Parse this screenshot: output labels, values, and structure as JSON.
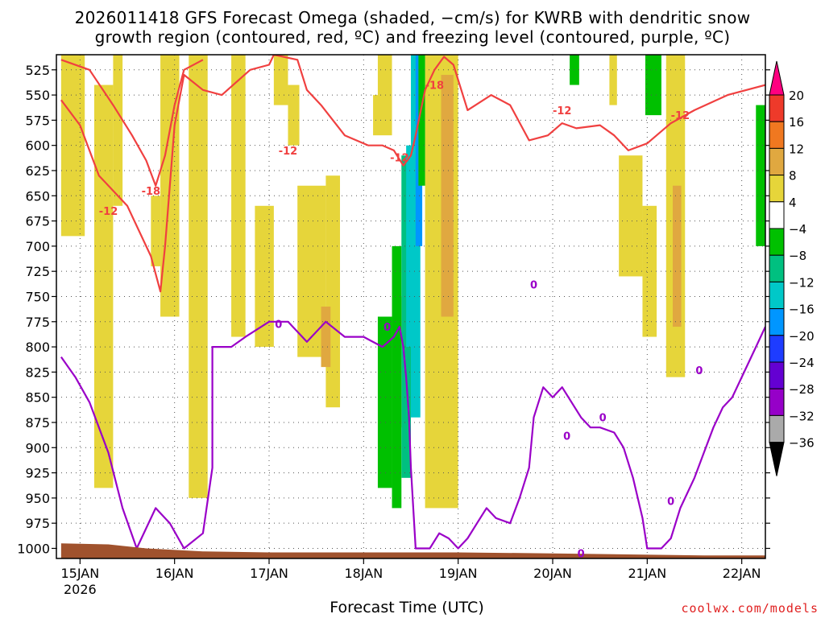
{
  "title_line1": "2026011418 GFS Forecast Omega (shaded, −cm/s) for KWRB with dendritic snow",
  "title_line2": "growth region (contoured, red, ºC) and freezing level (contoured, purple, ºC)",
  "credit": "coolwx.com/models",
  "chart_data": {
    "type": "heatmap",
    "title": "2026011418 GFS Forecast Omega (shaded, −cm/s) for KWRB with dendritic snow growth region (contoured, red, ºC) and freezing level (contoured, purple, ºC)",
    "xlabel": "Forecast Time (UTC)",
    "ylabel": "",
    "y_ticks": [
      525,
      550,
      575,
      600,
      625,
      650,
      675,
      700,
      725,
      750,
      775,
      800,
      825,
      850,
      875,
      900,
      925,
      950,
      975,
      1000
    ],
    "ylim": [
      1010,
      510
    ],
    "x_ticks": [
      {
        "label": "15JAN",
        "day": 15
      },
      {
        "label": "16JAN",
        "day": 16
      },
      {
        "label": "17JAN",
        "day": 17
      },
      {
        "label": "18JAN",
        "day": 18
      },
      {
        "label": "19JAN",
        "day": 19
      },
      {
        "label": "20JAN",
        "day": 20
      },
      {
        "label": "21JAN",
        "day": 21
      },
      {
        "label": "22JAN",
        "day": 22
      }
    ],
    "x_year_label": "2026",
    "xlim": [
      14.75,
      22.25
    ],
    "colorbar": {
      "values": [
        20,
        16,
        12,
        8,
        4,
        -4,
        -8,
        -12,
        -16,
        -20,
        -24,
        -28,
        -32,
        -36
      ],
      "colors": [
        "#ff0080",
        "#ee3a2a",
        "#f07820",
        "#e0a840",
        "#e6d53a",
        "#ffffff",
        "#00c000",
        "#00c080",
        "#00c8c8",
        "#0096ff",
        "#1e3cff",
        "#6400d2",
        "#9600c8",
        "#aaaaaa",
        "#000000"
      ]
    },
    "shaded_regions": [
      {
        "t0": 14.8,
        "t1": 15.05,
        "p0": 510,
        "p1": 690,
        "value": 4
      },
      {
        "t0": 15.15,
        "t1": 15.35,
        "p0": 540,
        "p1": 940,
        "value": 4
      },
      {
        "t0": 15.35,
        "t1": 15.45,
        "p0": 510,
        "p1": 660,
        "value": 4
      },
      {
        "t0": 15.75,
        "t1": 15.85,
        "p0": 650,
        "p1": 720,
        "value": 4
      },
      {
        "t0": 15.85,
        "t1": 16.05,
        "p0": 510,
        "p1": 770,
        "value": 4
      },
      {
        "t0": 16.15,
        "t1": 16.35,
        "p0": 510,
        "p1": 950,
        "value": 4
      },
      {
        "t0": 16.6,
        "t1": 16.75,
        "p0": 510,
        "p1": 790,
        "value": 4
      },
      {
        "t0": 16.85,
        "t1": 17.05,
        "p0": 660,
        "p1": 800,
        "value": 4
      },
      {
        "t0": 17.05,
        "t1": 17.2,
        "p0": 510,
        "p1": 560,
        "value": 4
      },
      {
        "t0": 17.3,
        "t1": 17.6,
        "p0": 640,
        "p1": 810,
        "value": 4
      },
      {
        "t0": 17.6,
        "t1": 17.75,
        "p0": 630,
        "p1": 860,
        "value": 4
      },
      {
        "t0": 17.55,
        "t1": 17.65,
        "p0": 760,
        "p1": 820,
        "value": 8
      },
      {
        "t0": 17.2,
        "t1": 17.32,
        "p0": 540,
        "p1": 600,
        "value": 4
      },
      {
        "t0": 18.1,
        "t1": 18.3,
        "p0": 510,
        "p1": 590,
        "value": 4
      },
      {
        "t0": 18.65,
        "t1": 19.0,
        "p0": 510,
        "p1": 960,
        "value": 4
      },
      {
        "t0": 18.82,
        "t1": 18.95,
        "p0": 530,
        "p1": 770,
        "value": 8
      },
      {
        "t0": 18.35,
        "t1": 18.45,
        "p0": 750,
        "p1": 880,
        "value": 4
      },
      {
        "t0": 20.6,
        "t1": 20.68,
        "p0": 510,
        "p1": 560,
        "value": 4
      },
      {
        "t0": 20.7,
        "t1": 20.95,
        "p0": 610,
        "p1": 730,
        "value": 4
      },
      {
        "t0": 20.95,
        "t1": 21.1,
        "p0": 660,
        "p1": 790,
        "value": 4
      },
      {
        "t0": 21.2,
        "t1": 21.4,
        "p0": 510,
        "p1": 830,
        "value": 4
      },
      {
        "t0": 21.27,
        "t1": 21.36,
        "p0": 640,
        "p1": 780,
        "value": 8
      },
      {
        "t0": 17.95,
        "t1": 18.15,
        "p0": 510,
        "p1": 550,
        "value": -4
      },
      {
        "t0": 18.15,
        "t1": 18.3,
        "p0": 770,
        "p1": 940,
        "value": -8
      },
      {
        "t0": 18.3,
        "t1": 18.4,
        "p0": 700,
        "p1": 960,
        "value": -8
      },
      {
        "t0": 18.4,
        "t1": 18.5,
        "p0": 610,
        "p1": 930,
        "value": -12
      },
      {
        "t0": 18.45,
        "t1": 18.55,
        "p0": 600,
        "p1": 800,
        "value": -16
      },
      {
        "t0": 18.5,
        "t1": 18.6,
        "p0": 510,
        "p1": 870,
        "value": -16
      },
      {
        "t0": 18.55,
        "t1": 18.62,
        "p0": 510,
        "p1": 700,
        "value": -20
      },
      {
        "t0": 18.58,
        "t1": 18.65,
        "p0": 510,
        "p1": 640,
        "value": -8
      },
      {
        "t0": 20.18,
        "t1": 20.28,
        "p0": 510,
        "p1": 540,
        "value": -8
      },
      {
        "t0": 20.98,
        "t1": 21.15,
        "p0": 510,
        "p1": 570,
        "value": -8
      },
      {
        "t0": 22.15,
        "t1": 22.25,
        "p0": 560,
        "p1": 700,
        "value": -8
      }
    ],
    "series": [
      {
        "name": "-12 ºC",
        "color": "#f04040",
        "points": [
          [
            14.8,
            555
          ],
          [
            15.0,
            580
          ],
          [
            15.2,
            630
          ],
          [
            15.5,
            660
          ],
          [
            15.75,
            710
          ],
          [
            15.85,
            745
          ],
          [
            15.9,
            700
          ],
          [
            16.0,
            580
          ],
          [
            16.1,
            530
          ],
          [
            16.3,
            545
          ],
          [
            16.5,
            550
          ],
          [
            16.8,
            525
          ],
          [
            17.0,
            520
          ],
          [
            17.05,
            510
          ],
          [
            17.3,
            515
          ],
          [
            17.4,
            545
          ],
          [
            17.55,
            560
          ],
          [
            17.8,
            590
          ],
          [
            18.05,
            600
          ],
          [
            18.2,
            600
          ],
          [
            18.32,
            605
          ],
          [
            18.42,
            620
          ],
          [
            18.5,
            610
          ],
          [
            18.55,
            590
          ],
          [
            18.65,
            545
          ],
          [
            18.75,
            525
          ],
          [
            18.85,
            512
          ],
          [
            18.95,
            520
          ],
          [
            19.1,
            565
          ],
          [
            19.35,
            550
          ],
          [
            19.55,
            560
          ],
          [
            19.75,
            595
          ],
          [
            19.95,
            590
          ],
          [
            20.1,
            578
          ],
          [
            20.25,
            583
          ],
          [
            20.5,
            580
          ],
          [
            20.65,
            590
          ],
          [
            20.8,
            605
          ],
          [
            21.0,
            598
          ],
          [
            21.25,
            578
          ],
          [
            21.5,
            565
          ],
          [
            21.85,
            550
          ],
          [
            22.25,
            540
          ]
        ],
        "labels": [
          {
            "text": "-12",
            "t": 15.3,
            "p": 665
          },
          {
            "text": "-12",
            "t": 17.2,
            "p": 605
          },
          {
            "text": "-12",
            "t": 18.38,
            "p": 612
          },
          {
            "text": "-12",
            "t": 20.1,
            "p": 565
          },
          {
            "text": "-12",
            "t": 21.35,
            "p": 570
          }
        ]
      },
      {
        "name": "-18 ºC",
        "color": "#f04040",
        "points": [
          [
            14.8,
            515
          ],
          [
            15.1,
            525
          ],
          [
            15.35,
            560
          ],
          [
            15.55,
            590
          ],
          [
            15.7,
            615
          ],
          [
            15.8,
            640
          ],
          [
            15.9,
            610
          ],
          [
            16.0,
            560
          ],
          [
            16.1,
            525
          ],
          [
            16.3,
            515
          ]
        ],
        "labels": [
          {
            "text": "-18",
            "t": 15.75,
            "p": 645
          },
          {
            "text": "-18",
            "t": 18.75,
            "p": 540
          }
        ]
      },
      {
        "name": "0 ºC freezing level",
        "color": "#9a00c8",
        "points": [
          [
            14.8,
            810
          ],
          [
            14.95,
            830
          ],
          [
            15.1,
            855
          ],
          [
            15.3,
            905
          ],
          [
            15.45,
            960
          ],
          [
            15.6,
            1000
          ],
          [
            15.8,
            960
          ],
          [
            15.95,
            975
          ],
          [
            16.1,
            1000
          ],
          [
            16.3,
            985
          ],
          [
            16.4,
            920
          ],
          [
            16.4,
            800
          ],
          [
            16.6,
            800
          ],
          [
            16.75,
            790
          ],
          [
            17.0,
            775
          ],
          [
            17.2,
            775
          ],
          [
            17.4,
            795
          ],
          [
            17.6,
            775
          ],
          [
            17.8,
            790
          ],
          [
            18.0,
            790
          ],
          [
            18.2,
            800
          ],
          [
            18.32,
            790
          ],
          [
            18.38,
            780
          ],
          [
            18.42,
            800
          ],
          [
            18.45,
            830
          ],
          [
            18.48,
            870
          ],
          [
            18.5,
            920
          ],
          [
            18.55,
            1000
          ],
          [
            18.7,
            1000
          ],
          [
            18.8,
            985
          ],
          [
            18.9,
            990
          ],
          [
            19.0,
            1000
          ],
          [
            19.1,
            990
          ],
          [
            19.2,
            975
          ],
          [
            19.3,
            960
          ],
          [
            19.4,
            970
          ],
          [
            19.55,
            975
          ],
          [
            19.65,
            950
          ],
          [
            19.75,
            920
          ],
          [
            19.8,
            870
          ],
          [
            19.9,
            840
          ],
          [
            20.0,
            850
          ],
          [
            20.1,
            840
          ],
          [
            20.3,
            870
          ],
          [
            20.4,
            880
          ],
          [
            20.5,
            880
          ],
          [
            20.65,
            885
          ],
          [
            20.75,
            900
          ],
          [
            20.85,
            930
          ],
          [
            20.95,
            970
          ],
          [
            21.0,
            1000
          ],
          [
            21.15,
            1000
          ],
          [
            21.25,
            990
          ],
          [
            21.35,
            960
          ],
          [
            21.5,
            930
          ],
          [
            21.6,
            905
          ],
          [
            21.7,
            880
          ],
          [
            21.8,
            860
          ],
          [
            21.9,
            850
          ],
          [
            22.0,
            830
          ],
          [
            22.15,
            800
          ],
          [
            22.25,
            780
          ]
        ],
        "labels": [
          {
            "text": "0",
            "t": 17.1,
            "p": 777
          },
          {
            "text": "0",
            "t": 18.25,
            "p": 780
          },
          {
            "text": "0",
            "t": 19.8,
            "p": 738
          },
          {
            "text": "0",
            "t": 20.15,
            "p": 888
          },
          {
            "text": "0",
            "t": 20.53,
            "p": 870
          },
          {
            "text": "0",
            "t": 21.55,
            "p": 823
          },
          {
            "text": "0",
            "t": 21.25,
            "p": 953
          },
          {
            "text": "0",
            "t": 20.3,
            "p": 1005
          }
        ]
      }
    ],
    "terrain": {
      "color": "#a0522d",
      "surface_pressure": [
        [
          14.8,
          995
        ],
        [
          15.3,
          996
        ],
        [
          15.7,
          1000
        ],
        [
          16.3,
          1003
        ],
        [
          17.0,
          1004
        ],
        [
          18.0,
          1004
        ],
        [
          19.0,
          1004
        ],
        [
          20.0,
          1005
        ],
        [
          20.8,
          1006
        ],
        [
          21.6,
          1007
        ],
        [
          22.25,
          1007
        ]
      ]
    }
  }
}
